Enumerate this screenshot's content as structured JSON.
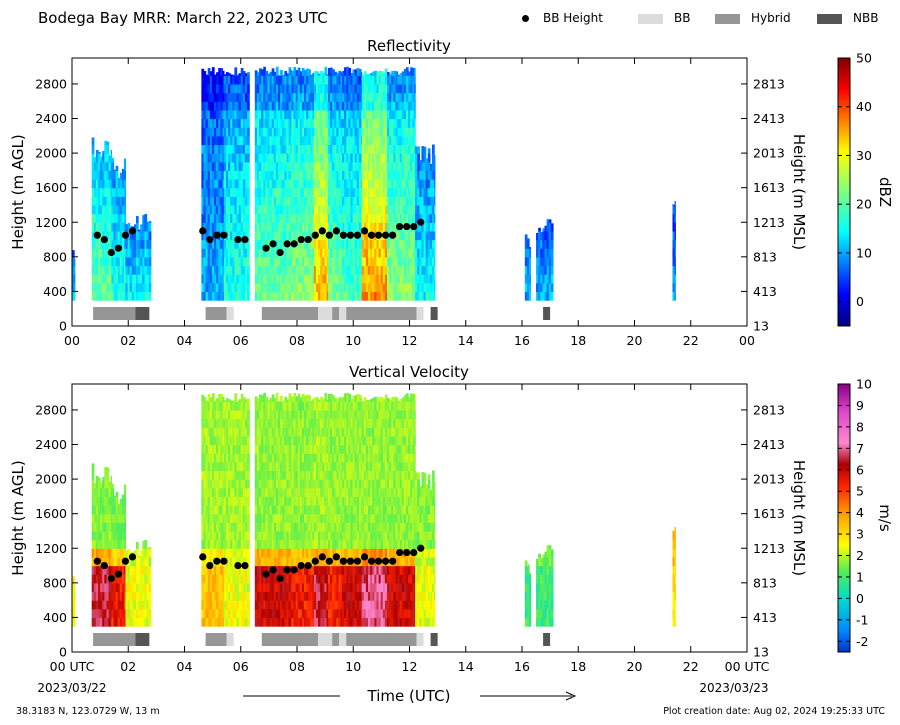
{
  "header": {
    "title": "Bodega Bay MRR:  March 22, 2023 UTC",
    "legend": [
      {
        "label": "BB Height",
        "kind": "dot",
        "color": "#000000"
      },
      {
        "label": "BB",
        "kind": "box",
        "color": "#dcdcdc"
      },
      {
        "label": "Hybrid",
        "kind": "box",
        "color": "#969696"
      },
      {
        "label": "NBB",
        "kind": "box",
        "color": "#555555"
      }
    ]
  },
  "chart_data": [
    {
      "type": "heatmap",
      "title": "Reflectivity",
      "ylabel": "Height (m AGL)",
      "ylabel_right": "Height (m MSL)",
      "xlim": [
        0,
        24
      ],
      "ylim": [
        0,
        3100
      ],
      "x_tick_labels": [
        "00",
        "02",
        "04",
        "06",
        "08",
        "10",
        "12",
        "14",
        "16",
        "18",
        "20",
        "22",
        "00"
      ],
      "y_ticks": [
        0,
        400,
        800,
        1200,
        1600,
        2000,
        2400,
        2800
      ],
      "y_tick_labels_right": [
        "13",
        "413",
        "813",
        "1213",
        "1613",
        "2013",
        "2413",
        "2813"
      ],
      "colorbar": {
        "label": "dBZ",
        "min": -5,
        "max": 50,
        "ticks": [
          0,
          10,
          20,
          30,
          40,
          50
        ],
        "scheme": "jet"
      },
      "echo_blocks": [
        {
          "start": 0.0,
          "end": 0.1,
          "top": 1000,
          "intensity": 0.25
        },
        {
          "start": 0.7,
          "end": 1.4,
          "top": 2200,
          "intensity": 0.45
        },
        {
          "start": 1.4,
          "end": 1.9,
          "top": 1950,
          "intensity": 0.35
        },
        {
          "start": 1.9,
          "end": 2.8,
          "top": 1300,
          "intensity": 0.3
        },
        {
          "start": 4.6,
          "end": 5.4,
          "top": 3000,
          "intensity": 0.2
        },
        {
          "start": 5.4,
          "end": 6.3,
          "top": 3000,
          "intensity": 0.35
        },
        {
          "start": 6.5,
          "end": 7.8,
          "top": 3000,
          "intensity": 0.45
        },
        {
          "start": 7.8,
          "end": 8.6,
          "top": 3000,
          "intensity": 0.5
        },
        {
          "start": 8.6,
          "end": 9.1,
          "top": 3000,
          "intensity": 0.75
        },
        {
          "start": 9.1,
          "end": 9.6,
          "top": 3000,
          "intensity": 0.45
        },
        {
          "start": 9.6,
          "end": 10.3,
          "top": 3000,
          "intensity": 0.4
        },
        {
          "start": 10.3,
          "end": 11.2,
          "top": 3000,
          "intensity": 0.8
        },
        {
          "start": 11.2,
          "end": 12.2,
          "top": 3000,
          "intensity": 0.5
        },
        {
          "start": 12.2,
          "end": 12.9,
          "top": 2100,
          "intensity": 0.3
        },
        {
          "start": 16.1,
          "end": 16.3,
          "top": 1100,
          "intensity": 0.2
        },
        {
          "start": 16.5,
          "end": 17.1,
          "top": 1300,
          "intensity": 0.2
        },
        {
          "start": 21.35,
          "end": 21.45,
          "top": 1600,
          "intensity": 0.15
        }
      ]
    },
    {
      "type": "heatmap",
      "title": "Vertical Velocity",
      "ylabel": "Height (m AGL)",
      "ylabel_right": "Height (m MSL)",
      "xlabel": "Time (UTC)",
      "xlim": [
        0,
        24
      ],
      "ylim": [
        0,
        3100
      ],
      "x_tick_labels": [
        "00 UTC",
        "02",
        "04",
        "06",
        "08",
        "10",
        "12",
        "14",
        "16",
        "18",
        "20",
        "22",
        "00 UTC"
      ],
      "x_date_start": "2023/03/22",
      "x_date_end": "2023/03/23",
      "y_ticks": [
        0,
        400,
        800,
        1200,
        1600,
        2000,
        2400,
        2800
      ],
      "y_tick_labels_right": [
        "13",
        "413",
        "813",
        "1213",
        "1613",
        "2013",
        "2413",
        "2813"
      ],
      "colorbar": {
        "label": "m/s",
        "min": -2.5,
        "max": 10,
        "ticks": [
          -2,
          -1,
          0,
          1,
          2,
          3,
          4,
          5,
          6,
          7,
          8,
          9,
          10
        ],
        "scheme": "rainbow-magenta"
      },
      "echo_blocks": [
        {
          "start": 0.0,
          "end": 0.1,
          "top": 1000,
          "rain": 3,
          "snow": 1.5
        },
        {
          "start": 0.7,
          "end": 1.4,
          "top": 2200,
          "rain": 7,
          "snow": 1.6
        },
        {
          "start": 1.4,
          "end": 1.9,
          "top": 1950,
          "rain": 6,
          "snow": 1.4
        },
        {
          "start": 1.9,
          "end": 2.8,
          "top": 1300,
          "rain": 3,
          "snow": 1.6
        },
        {
          "start": 4.6,
          "end": 5.4,
          "top": 3000,
          "rain": 4,
          "snow": 1.8
        },
        {
          "start": 5.4,
          "end": 6.3,
          "top": 3000,
          "rain": 3,
          "snow": 1.8
        },
        {
          "start": 6.5,
          "end": 7.8,
          "top": 3000,
          "rain": 6.5,
          "snow": 1.7
        },
        {
          "start": 7.8,
          "end": 8.6,
          "top": 3000,
          "rain": 6,
          "snow": 1.7
        },
        {
          "start": 8.6,
          "end": 9.1,
          "top": 3000,
          "rain": 7,
          "snow": 1.8
        },
        {
          "start": 9.1,
          "end": 9.6,
          "top": 3000,
          "rain": 6,
          "snow": 1.7
        },
        {
          "start": 9.6,
          "end": 10.3,
          "top": 3000,
          "rain": 6.5,
          "snow": 1.7
        },
        {
          "start": 10.3,
          "end": 11.2,
          "top": 3000,
          "rain": 7.5,
          "snow": 1.7
        },
        {
          "start": 11.2,
          "end": 12.2,
          "top": 3000,
          "rain": 6.5,
          "snow": 1.7
        },
        {
          "start": 12.2,
          "end": 12.9,
          "top": 2100,
          "rain": 3,
          "snow": 1.6
        },
        {
          "start": 16.1,
          "end": 16.3,
          "top": 1100,
          "rain": 1.5,
          "snow": 1.5
        },
        {
          "start": 16.5,
          "end": 17.1,
          "top": 1300,
          "rain": 1.5,
          "snow": 1.5
        },
        {
          "start": 21.35,
          "end": 21.45,
          "top": 1600,
          "rain": 3.5,
          "snow": 3.5
        }
      ]
    }
  ],
  "bright_band": {
    "heights": [
      {
        "t": 0.9,
        "h": 1050
      },
      {
        "t": 1.15,
        "h": 1000
      },
      {
        "t": 1.4,
        "h": 850
      },
      {
        "t": 1.65,
        "h": 900
      },
      {
        "t": 1.9,
        "h": 1050
      },
      {
        "t": 2.15,
        "h": 1100
      },
      {
        "t": 4.65,
        "h": 1100
      },
      {
        "t": 4.9,
        "h": 1000
      },
      {
        "t": 5.15,
        "h": 1050
      },
      {
        "t": 5.4,
        "h": 1050
      },
      {
        "t": 5.9,
        "h": 1000
      },
      {
        "t": 6.15,
        "h": 1000
      },
      {
        "t": 6.9,
        "h": 900
      },
      {
        "t": 7.15,
        "h": 950
      },
      {
        "t": 7.4,
        "h": 850
      },
      {
        "t": 7.65,
        "h": 950
      },
      {
        "t": 7.9,
        "h": 950
      },
      {
        "t": 8.15,
        "h": 1000
      },
      {
        "t": 8.4,
        "h": 1000
      },
      {
        "t": 8.65,
        "h": 1050
      },
      {
        "t": 8.9,
        "h": 1100
      },
      {
        "t": 9.15,
        "h": 1050
      },
      {
        "t": 9.4,
        "h": 1100
      },
      {
        "t": 9.65,
        "h": 1050
      },
      {
        "t": 9.9,
        "h": 1050
      },
      {
        "t": 10.15,
        "h": 1050
      },
      {
        "t": 10.4,
        "h": 1100
      },
      {
        "t": 10.65,
        "h": 1050
      },
      {
        "t": 10.9,
        "h": 1050
      },
      {
        "t": 11.15,
        "h": 1050
      },
      {
        "t": 11.4,
        "h": 1050
      },
      {
        "t": 11.65,
        "h": 1150
      },
      {
        "t": 11.9,
        "h": 1150
      },
      {
        "t": 12.15,
        "h": 1150
      },
      {
        "t": 12.4,
        "h": 1200
      }
    ],
    "type_segments": [
      {
        "start": 0.75,
        "end": 2.25,
        "type": "Hybrid"
      },
      {
        "start": 2.25,
        "end": 2.75,
        "type": "NBB"
      },
      {
        "start": 4.75,
        "end": 5.5,
        "type": "Hybrid"
      },
      {
        "start": 5.5,
        "end": 5.75,
        "type": "BB"
      },
      {
        "start": 6.75,
        "end": 8.75,
        "type": "Hybrid"
      },
      {
        "start": 8.75,
        "end": 9.25,
        "type": "BB"
      },
      {
        "start": 9.25,
        "end": 9.5,
        "type": "Hybrid"
      },
      {
        "start": 9.5,
        "end": 9.75,
        "type": "BB"
      },
      {
        "start": 9.75,
        "end": 12.25,
        "type": "Hybrid"
      },
      {
        "start": 12.25,
        "end": 12.5,
        "type": "BB"
      },
      {
        "start": 12.75,
        "end": 13.0,
        "type": "NBB"
      },
      {
        "start": 16.75,
        "end": 17.0,
        "type": "NBB"
      }
    ]
  },
  "footer": {
    "location": "38.3183 N, 123.0729 W, 13 m",
    "creation": "Plot creation date: Aug 02, 2024 19:25:33 UTC"
  }
}
